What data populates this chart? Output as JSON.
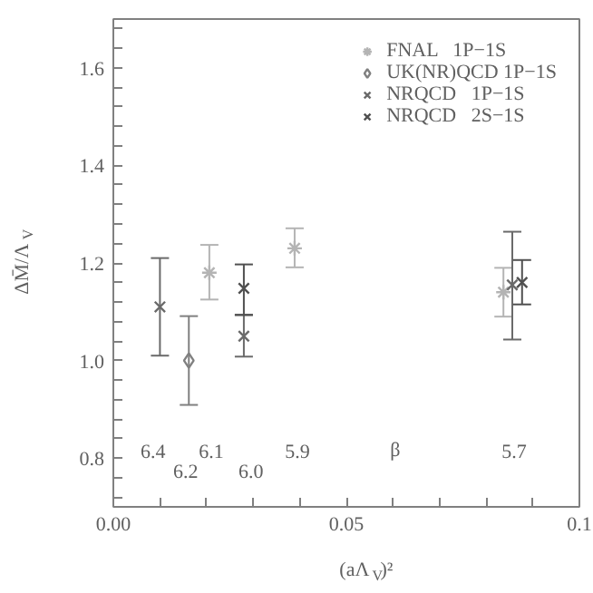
{
  "chart_data": {
    "type": "scatter",
    "xlabel": "(aΛ$_{V}$)²",
    "ylabel": "ΔM̄/Λ$_{V}$",
    "xlim": [
      0,
      0.1
    ],
    "ylim": [
      0.7,
      1.7
    ],
    "xticks": [
      {
        "value": 0,
        "label": "0.00"
      },
      {
        "value": 0.01,
        "label": null
      },
      {
        "value": 0.02,
        "label": null
      },
      {
        "value": 0.03,
        "label": null
      },
      {
        "value": 0.04,
        "label": null
      },
      0.05,
      {
        "value": 0.06,
        "label": null
      },
      {
        "value": 0.07,
        "label": null
      },
      {
        "value": 0.08,
        "label": null
      },
      {
        "value": 0.09,
        "label": null
      },
      0.1
    ],
    "yticks": [
      {
        "value": 0.72,
        "label": null
      },
      {
        "value": 0.76,
        "label": null
      },
      0.8,
      {
        "value": 0.84,
        "label": null
      },
      {
        "value": 0.88,
        "label": null
      },
      {
        "value": 0.92,
        "label": null
      },
      {
        "value": 0.96,
        "label": null
      },
      {
        "value": 1.0,
        "label": "1.0"
      },
      {
        "value": 1.04,
        "label": null
      },
      {
        "value": 1.08,
        "label": null
      },
      {
        "value": 1.12,
        "label": null
      },
      {
        "value": 1.16,
        "label": null
      },
      1.2,
      {
        "value": 1.24,
        "label": null
      },
      {
        "value": 1.28,
        "label": null
      },
      {
        "value": 1.32,
        "label": null
      },
      {
        "value": 1.36,
        "label": null
      },
      1.4,
      {
        "value": 1.44,
        "label": null
      },
      {
        "value": 1.48,
        "label": null
      },
      {
        "value": 1.52,
        "label": null
      },
      {
        "value": 1.56,
        "label": null
      },
      1.6,
      {
        "value": 1.64,
        "label": null
      },
      {
        "value": 1.68,
        "label": null
      }
    ],
    "grid": false,
    "legend": "top right",
    "series": [
      {
        "name": "FNAL   1P−1S",
        "color": "#b4b4b4",
        "marker": "cross",
        "x": [
          0.0206,
          0.0389,
          0.0837
        ],
        "values": [
          1.18,
          1.23,
          1.14
        ],
        "errors": [
          [
            1.125,
            1.237
          ],
          [
            1.191,
            1.271
          ],
          [
            1.09,
            1.19
          ]
        ]
      },
      {
        "name": "UK(NR)QCD 1P−1S",
        "color": "#808080",
        "marker": "diamond",
        "x": [
          0.0162
        ],
        "values": [
          1.0
        ],
        "errors": [
          [
            0.909,
            1.091
          ]
        ]
      },
      {
        "name": "NRQCD   1P−1S",
        "color": "#6a6a6a",
        "marker": "x",
        "x": [
          0.01,
          0.028,
          0.0856
        ],
        "values": [
          1.11,
          1.05,
          1.155
        ],
        "errors": [
          [
            1.01,
            1.21
          ],
          [
            1.008,
            1.094
          ],
          [
            1.043,
            1.264
          ]
        ]
      },
      {
        "name": "NRQCD   2S−1S",
        "color": "#505050",
        "marker": "x",
        "x": [
          0.028,
          0.0877
        ],
        "values": [
          1.148,
          1.16
        ],
        "errors": [
          [
            1.093,
            1.197
          ],
          [
            1.115,
            1.206
          ]
        ]
      }
    ],
    "annotations": [
      "6.4",
      "6.2",
      "6.1",
      "6.0",
      "5.9",
      "β",
      "5.7"
    ]
  }
}
